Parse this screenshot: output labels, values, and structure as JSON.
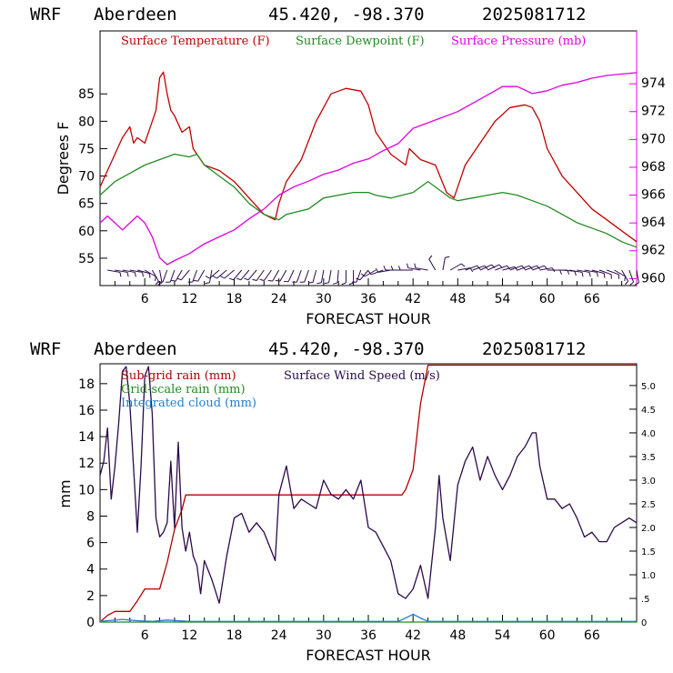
{
  "header": {
    "model": "WRF",
    "station": "Aberdeen",
    "coords": "45.420, -98.370",
    "run": "2025081712"
  },
  "colors": {
    "temperature": "#c00000",
    "dewpoint": "#228b22",
    "pressure": "#e000e0",
    "subgrid_rain": "#b00000",
    "gridscale_rain": "#228b22",
    "cloud": "#1e7fcf",
    "wind_speed": "#2b0a4a",
    "wind_barbs": "#2b0a4a"
  },
  "chart_data": [
    {
      "type": "line",
      "x_label": "FORECAST HOUR",
      "y_label": "Degrees F",
      "y2_label": "",
      "xlim": [
        0,
        72
      ],
      "ylim": [
        50,
        96.5
      ],
      "y2lim": [
        959.5,
        977.8
      ],
      "x_ticks": [
        "6",
        "12",
        "18",
        "24",
        "30",
        "36",
        "42",
        "48",
        "54",
        "60",
        "66"
      ],
      "y_ticks": [
        "55",
        "60",
        "65",
        "70",
        "75",
        "80",
        "85"
      ],
      "y2_ticks": [
        "960",
        "962",
        "964",
        "966",
        "968",
        "970",
        "972",
        "974"
      ],
      "grid": false,
      "legend_position": "top",
      "series": [
        {
          "name": "Surface Temperature (F)",
          "axis": "left",
          "x": [
            0,
            1,
            2,
            3,
            4,
            4.5,
            5,
            6,
            7,
            7.5,
            8,
            8.5,
            9,
            9.5,
            10,
            11,
            12,
            12.5,
            13,
            13.5,
            14,
            16,
            18,
            20,
            22,
            23.5,
            24,
            25,
            27,
            29,
            31,
            33,
            35,
            36,
            37,
            39,
            41,
            41.5,
            43,
            45,
            46.5,
            47.5,
            48,
            49,
            51,
            53,
            55,
            57,
            58,
            59,
            60,
            62,
            64,
            66,
            68,
            70,
            72
          ],
          "y": [
            68,
            71,
            74,
            77,
            79,
            76,
            77,
            76,
            80,
            82,
            88,
            89,
            85,
            82,
            81,
            78,
            79,
            75,
            74,
            73,
            72,
            71,
            69,
            66,
            63,
            62,
            65,
            69,
            73,
            80,
            85,
            86,
            85.5,
            83,
            78,
            74,
            72,
            75,
            73,
            72,
            67,
            66,
            68,
            72,
            76,
            80,
            82.5,
            83,
            82.5,
            80,
            75,
            70,
            67,
            64,
            62,
            60,
            58
          ]
        },
        {
          "name": "Surface Dewpoint (F)",
          "axis": "left",
          "x": [
            0,
            2,
            4,
            6,
            8,
            10,
            12,
            13,
            14,
            16,
            18,
            20,
            22,
            24,
            25,
            28,
            30,
            32,
            34,
            36,
            37,
            39,
            42,
            44,
            45,
            46,
            47,
            48,
            50,
            52,
            54,
            56,
            58,
            60,
            62,
            64,
            66,
            68,
            70,
            72
          ],
          "y": [
            66.5,
            69,
            70.5,
            72,
            73,
            74,
            73.5,
            74,
            72,
            70,
            68,
            65,
            63,
            62,
            63,
            64,
            66,
            66.5,
            67,
            67,
            66.5,
            66,
            67,
            69,
            68,
            67,
            66,
            65.5,
            66,
            66.5,
            67,
            66.5,
            65.5,
            64.5,
            63,
            61.5,
            60.5,
            59.5,
            58,
            57
          ]
        },
        {
          "name": "Surface Pressure (mb)",
          "axis": "right",
          "x": [
            0,
            1,
            2,
            3,
            4,
            5,
            6,
            7,
            8,
            9,
            10,
            12,
            14,
            16,
            18,
            20,
            22,
            24,
            26,
            28,
            30,
            32,
            34,
            36,
            38,
            40,
            42,
            44,
            46,
            48,
            50,
            52,
            54,
            56,
            58,
            60,
            62,
            64,
            66,
            68,
            70,
            72
          ],
          "y": [
            964,
            964.5,
            964,
            963.5,
            964,
            964.5,
            964,
            963,
            961.5,
            961,
            961.3,
            961.8,
            962.5,
            963,
            963.5,
            964.3,
            965,
            966,
            966.6,
            967,
            967.5,
            967.8,
            968.3,
            968.6,
            969.2,
            969.7,
            970.8,
            971.2,
            971.6,
            972,
            972.6,
            973.2,
            973.8,
            973.8,
            973.3,
            973.5,
            973.9,
            974.1,
            974.4,
            974.6,
            974.7,
            974.8
          ]
        }
      ],
      "wind_barbs": {
        "x": [
          1,
          2,
          3,
          4,
          5,
          6,
          7,
          8,
          9,
          10,
          11,
          12,
          13,
          14,
          15,
          16,
          17,
          18,
          19,
          20,
          21,
          22,
          23,
          24,
          25,
          26,
          27,
          28,
          29,
          30,
          31,
          32,
          33,
          34,
          35,
          36,
          37,
          38,
          39,
          40,
          41,
          42,
          43,
          44,
          45,
          46,
          47,
          48,
          49,
          50,
          51,
          52,
          53,
          54,
          55,
          56,
          57,
          58,
          59,
          60,
          61,
          62,
          63,
          64,
          65,
          66,
          67,
          68,
          69,
          70,
          71,
          72
        ],
        "dir_deg": [
          100,
          100,
          100,
          100,
          105,
          120,
          150,
          170,
          200,
          200,
          210,
          220,
          200,
          210,
          190,
          230,
          230,
          230,
          220,
          220,
          220,
          215,
          215,
          210,
          210,
          205,
          200,
          200,
          195,
          190,
          190,
          185,
          180,
          180,
          200,
          220,
          240,
          250,
          260,
          270,
          270,
          270,
          280,
          280,
          330,
          10,
          60,
          80,
          70,
          70,
          65,
          65,
          70,
          75,
          70,
          70,
          70,
          70,
          80,
          90,
          90,
          95,
          100,
          100,
          100,
          105,
          110,
          110,
          120,
          150,
          160,
          170
        ]
      }
    },
    {
      "type": "line",
      "x_label": "FORECAST HOUR",
      "y_label": "mm",
      "xlim": [
        0,
        72
      ],
      "ylim": [
        0,
        19.5
      ],
      "y2lim": [
        0,
        5.46
      ],
      "x_ticks": [
        "6",
        "12",
        "18",
        "24",
        "30",
        "36",
        "42",
        "48",
        "54",
        "60",
        "66"
      ],
      "y_ticks": [
        "0",
        "2",
        "4",
        "6",
        "8",
        "10",
        "12",
        "14",
        "16",
        "18"
      ],
      "y2_ticks": [
        "0",
        ".5",
        "1.0",
        "1.5",
        "2.0",
        "2.5",
        "3.0",
        "3.5",
        "4.0",
        "4.5",
        "5.0"
      ],
      "grid": false,
      "legend_position": "top-left",
      "series": [
        {
          "name": "Sub-grid rain (mm)",
          "axis": "left",
          "x": [
            0,
            1,
            2,
            3,
            4,
            5,
            6,
            7,
            8,
            9,
            10,
            11,
            11.5,
            12,
            24,
            36,
            40.5,
            41,
            42,
            43,
            44,
            72
          ],
          "y": [
            0,
            0.5,
            0.8,
            0.8,
            0.8,
            1.6,
            2.5,
            2.5,
            2.5,
            4.5,
            7,
            8.5,
            9.6,
            9.6,
            9.6,
            9.6,
            9.6,
            10,
            11.5,
            16.5,
            19.4,
            19.4
          ]
        },
        {
          "name": "Grid-scale rain (mm)",
          "axis": "left",
          "x": [
            0,
            72
          ],
          "y": [
            0,
            0
          ]
        },
        {
          "name": "Integrated cloud (mm)",
          "axis": "left",
          "x": [
            0,
            1,
            3,
            5,
            7,
            9,
            12,
            20,
            30,
            40,
            41,
            42,
            43,
            44,
            46,
            60,
            72
          ],
          "y": [
            0.05,
            0.1,
            0.2,
            0.1,
            0.05,
            0.15,
            0.05,
            0.05,
            0.05,
            0.05,
            0.3,
            0.6,
            0.3,
            0.05,
            0.05,
            0.05,
            0.05
          ]
        },
        {
          "name": "Surface Wind Speed (m/s)",
          "axis": "right",
          "x": [
            0,
            0.5,
            1,
            1.5,
            2,
            2.5,
            3,
            3.5,
            4,
            5,
            5.5,
            6,
            6.5,
            7,
            7.5,
            8,
            8.5,
            9,
            9.5,
            10,
            10.5,
            11,
            11.5,
            12,
            12.5,
            13,
            13.5,
            14,
            15,
            16,
            17,
            18,
            19,
            20,
            21,
            22,
            23,
            23.5,
            24,
            25,
            26,
            27,
            28,
            29,
            30,
            31,
            32,
            33,
            34,
            35,
            36,
            37,
            38,
            39,
            40,
            41,
            42,
            43,
            44,
            45,
            45.5,
            46,
            47,
            48,
            49,
            50,
            51,
            52,
            53,
            54,
            55,
            56,
            57,
            58,
            58.5,
            59,
            60,
            61,
            62,
            63,
            64,
            65,
            66,
            67,
            68,
            69,
            70,
            71,
            72
          ],
          "y": [
            3.1,
            3.4,
            4.1,
            2.6,
            3.3,
            4.2,
            5.3,
            5.4,
            4.6,
            1.9,
            3.3,
            5.2,
            5.4,
            4.4,
            2.2,
            1.8,
            1.9,
            2.1,
            3.4,
            2.0,
            3.8,
            2.0,
            1.5,
            1.9,
            1.4,
            1.2,
            0.6,
            1.3,
            0.9,
            0.4,
            1.4,
            2.2,
            2.3,
            1.9,
            2.1,
            1.9,
            1.5,
            1.3,
            2.7,
            3.3,
            2.4,
            2.6,
            2.5,
            2.4,
            3.0,
            2.7,
            2.6,
            2.8,
            2.6,
            3.0,
            2.0,
            1.9,
            1.6,
            1.3,
            0.6,
            0.5,
            0.7,
            1.2,
            0.5,
            2.0,
            3.1,
            2.2,
            1.3,
            2.9,
            3.4,
            3.7,
            3.0,
            3.5,
            3.1,
            2.8,
            3.1,
            3.5,
            3.7,
            4.0,
            4.0,
            3.3,
            2.6,
            2.6,
            2.4,
            2.5,
            2.2,
            1.8,
            1.9,
            1.7,
            1.7,
            2.0,
            2.1,
            2.2,
            2.1
          ]
        }
      ]
    }
  ]
}
